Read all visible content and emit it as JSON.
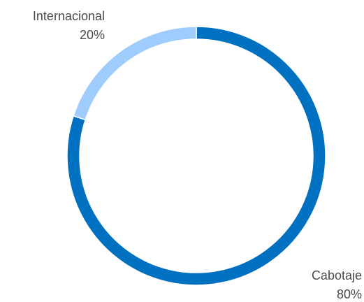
{
  "chart_data": {
    "type": "pie",
    "variant": "donut",
    "title": "",
    "categories": [
      "Cabotaje",
      "Internacional"
    ],
    "values": [
      80,
      20
    ],
    "value_labels": [
      "80%",
      "20%"
    ],
    "colors": [
      "#0070C0",
      "#9DCCFD"
    ]
  }
}
